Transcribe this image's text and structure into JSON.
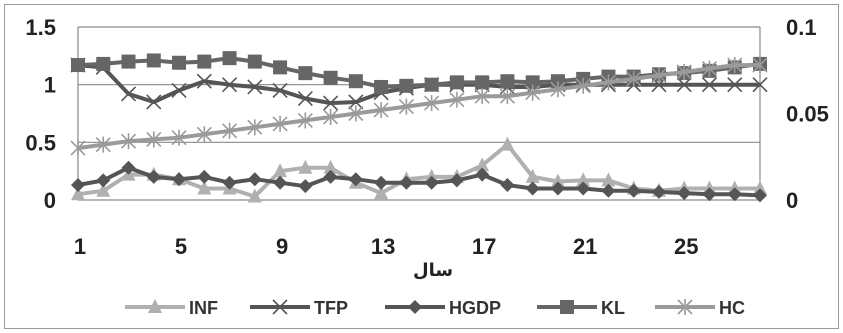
{
  "chart_data": {
    "type": "line",
    "title": "",
    "xlabel": "سال",
    "ylabel": "",
    "x": [
      1,
      2,
      3,
      4,
      5,
      6,
      7,
      8,
      9,
      10,
      11,
      12,
      13,
      14,
      15,
      16,
      17,
      18,
      19,
      20,
      21,
      22,
      23,
      24,
      25,
      26,
      27,
      28
    ],
    "x_ticks": [
      "1",
      "5",
      "9",
      "13",
      "17",
      "21",
      "25"
    ],
    "x_tick_values": [
      1,
      5,
      9,
      13,
      17,
      21,
      25
    ],
    "ylim": [
      0,
      1.5
    ],
    "y_ticks": [
      "0",
      "0.5",
      "1",
      "1.5"
    ],
    "y_tick_values": [
      0,
      0.5,
      1,
      1.5
    ],
    "y2lim": [
      0,
      0.1
    ],
    "y2_ticks": [
      "0",
      "0.05",
      "0.1"
    ],
    "y2_tick_values": [
      0,
      0.05,
      0.1
    ],
    "grid": true,
    "legend_position": "bottom",
    "series": [
      {
        "name": "INF",
        "axis": "left",
        "color": "#b0b0b0",
        "marker": "triangle",
        "values": [
          0.05,
          0.08,
          0.22,
          0.22,
          0.18,
          0.1,
          0.1,
          0.03,
          0.25,
          0.28,
          0.28,
          0.15,
          0.06,
          0.18,
          0.2,
          0.2,
          0.3,
          0.48,
          0.2,
          0.16,
          0.17,
          0.17,
          0.1,
          0.08,
          0.1,
          0.1,
          0.1,
          0.1
        ]
      },
      {
        "name": "TFP",
        "axis": "left",
        "color": "#555555",
        "marker": "x",
        "values": [
          1.17,
          1.15,
          0.92,
          0.85,
          0.95,
          1.03,
          1.0,
          0.98,
          0.95,
          0.88,
          0.84,
          0.85,
          0.93,
          0.97,
          1.0,
          1.0,
          1.0,
          0.98,
          0.98,
          1.0,
          1.0,
          1.0,
          1.0,
          1.0,
          1.0,
          1.0,
          1.0,
          1.0
        ]
      },
      {
        "name": "HGDP",
        "axis": "left",
        "color": "#555555",
        "marker": "diamond",
        "values": [
          0.13,
          0.17,
          0.28,
          0.2,
          0.18,
          0.2,
          0.15,
          0.18,
          0.15,
          0.12,
          0.2,
          0.18,
          0.15,
          0.15,
          0.15,
          0.17,
          0.22,
          0.13,
          0.1,
          0.1,
          0.1,
          0.08,
          0.08,
          0.07,
          0.06,
          0.05,
          0.05,
          0.04
        ]
      },
      {
        "name": "KL",
        "axis": "left",
        "color": "#666666",
        "marker": "square",
        "values": [
          1.17,
          1.18,
          1.2,
          1.21,
          1.19,
          1.2,
          1.23,
          1.2,
          1.15,
          1.1,
          1.06,
          1.03,
          0.98,
          0.99,
          1.0,
          1.02,
          1.02,
          1.03,
          1.02,
          1.03,
          1.05,
          1.07,
          1.07,
          1.09,
          1.1,
          1.12,
          1.15,
          1.18
        ]
      },
      {
        "name": "HC",
        "axis": "right",
        "color": "#9a9a9a",
        "marker": "star",
        "values": [
          0.03,
          0.032,
          0.034,
          0.035,
          0.036,
          0.038,
          0.04,
          0.042,
          0.044,
          0.046,
          0.048,
          0.05,
          0.052,
          0.054,
          0.056,
          0.058,
          0.06,
          0.06,
          0.062,
          0.064,
          0.066,
          0.068,
          0.07,
          0.072,
          0.074,
          0.076,
          0.078,
          0.078
        ]
      }
    ]
  }
}
